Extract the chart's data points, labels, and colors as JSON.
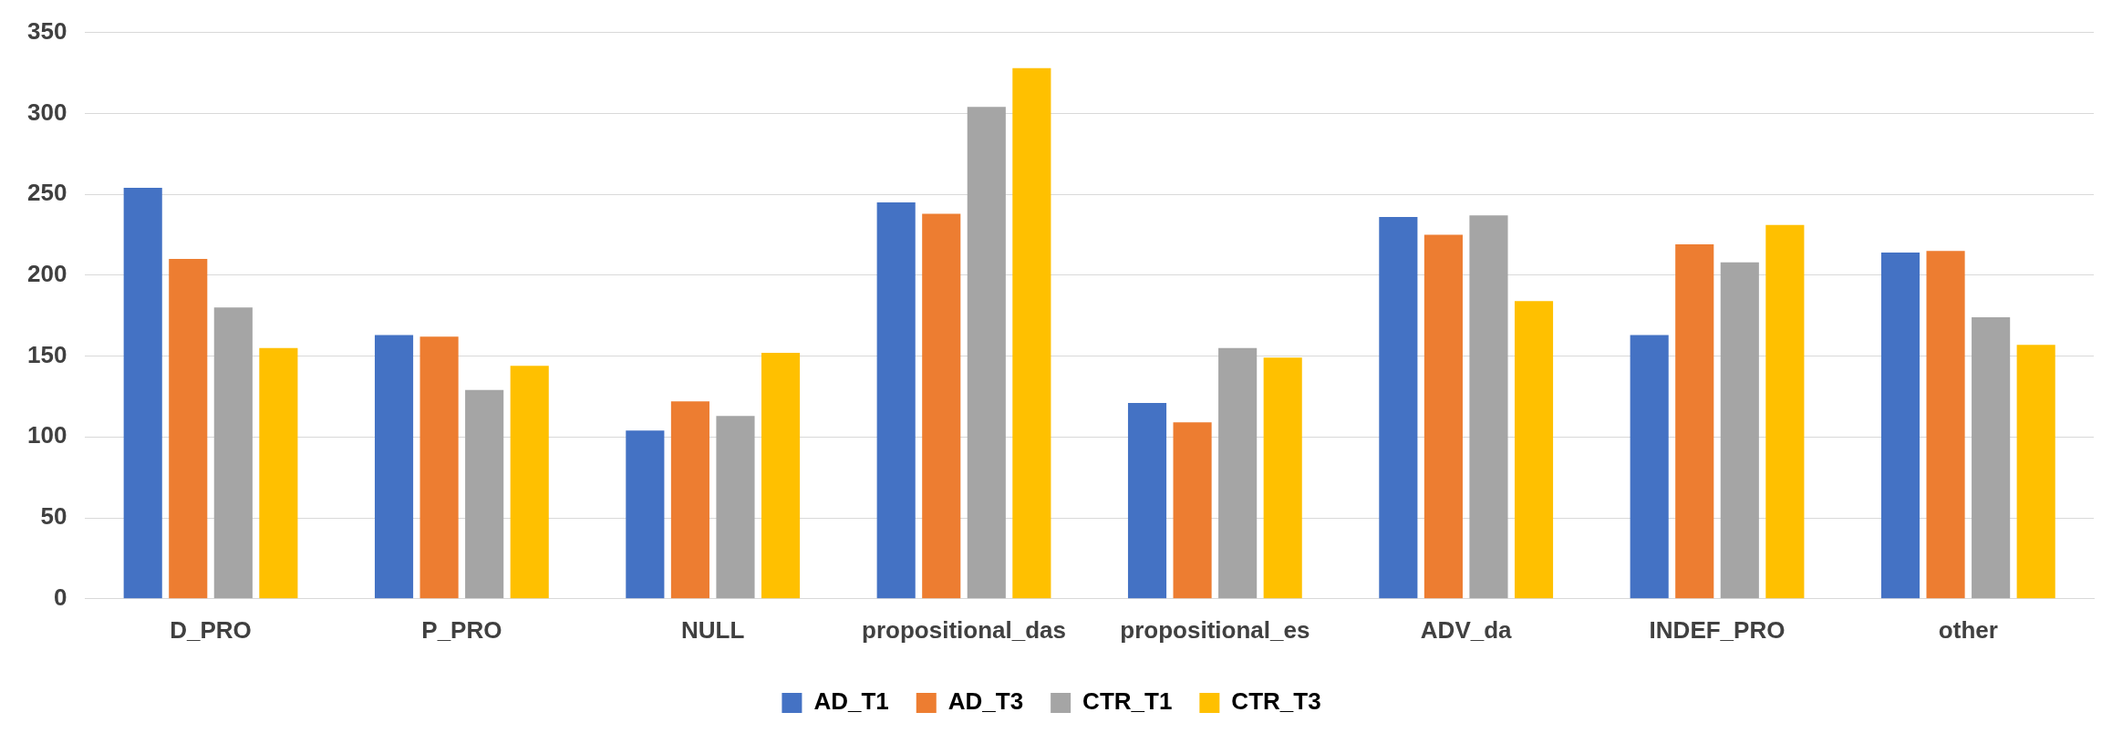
{
  "chart_data": {
    "type": "bar",
    "categories": [
      "D_PRO",
      "P_PRO",
      "NULL",
      "propositional_das",
      "propositional_es",
      "ADV_da",
      "INDEF_PRO",
      "other"
    ],
    "series": [
      {
        "name": "AD_T1",
        "color": "#4472c4",
        "values": [
          254,
          163,
          104,
          245,
          121,
          236,
          163,
          214
        ]
      },
      {
        "name": "AD_T3",
        "color": "#ed7d31",
        "values": [
          210,
          162,
          122,
          238,
          109,
          225,
          219,
          215
        ]
      },
      {
        "name": "CTR_T1",
        "color": "#a5a5a5",
        "values": [
          180,
          129,
          113,
          304,
          155,
          237,
          208,
          174
        ]
      },
      {
        "name": "CTR_T3",
        "color": "#ffc000",
        "values": [
          155,
          144,
          152,
          328,
          149,
          184,
          231,
          157
        ]
      }
    ],
    "ylim": [
      0,
      350
    ],
    "yticks": [
      0,
      50,
      100,
      150,
      200,
      250,
      300,
      350
    ],
    "grid": "y",
    "legend": "bottom"
  }
}
